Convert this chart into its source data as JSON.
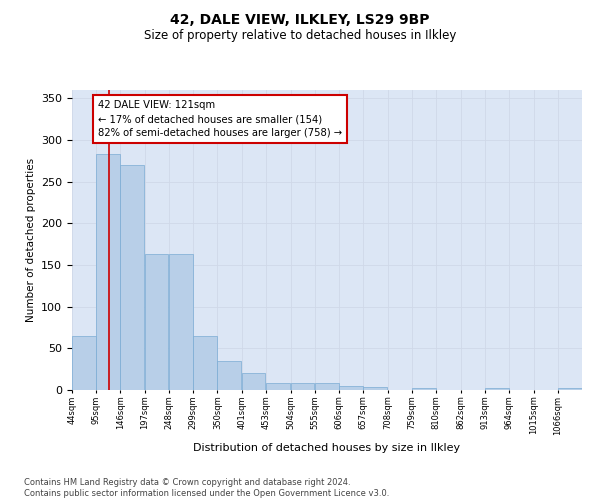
{
  "title": "42, DALE VIEW, ILKLEY, LS29 9BP",
  "subtitle": "Size of property relative to detached houses in Ilkley",
  "xlabel": "Distribution of detached houses by size in Ilkley",
  "ylabel": "Number of detached properties",
  "footnote": "Contains HM Land Registry data © Crown copyright and database right 2024.\nContains public sector information licensed under the Open Government Licence v3.0.",
  "bar_color": "#b8cfe8",
  "bar_edge_color": "#7aabd4",
  "grid_color": "#d0d8e8",
  "background_color": "#dce6f5",
  "red_line_x": 121,
  "annotation_text": "42 DALE VIEW: 121sqm\n← 17% of detached houses are smaller (154)\n82% of semi-detached houses are larger (758) →",
  "annotation_box_color": "#ffffff",
  "annotation_box_edge": "#cc0000",
  "bins": [
    44,
    95,
    146,
    197,
    248,
    299,
    350,
    401,
    453,
    504,
    555,
    606,
    657,
    708,
    759,
    810,
    862,
    913,
    964,
    1015,
    1066
  ],
  "values": [
    65,
    283,
    270,
    163,
    163,
    65,
    35,
    20,
    8,
    9,
    8,
    5,
    4,
    0,
    3,
    0,
    0,
    2,
    0,
    0,
    2
  ],
  "ylim": [
    0,
    360
  ],
  "yticks": [
    0,
    50,
    100,
    150,
    200,
    250,
    300,
    350
  ]
}
